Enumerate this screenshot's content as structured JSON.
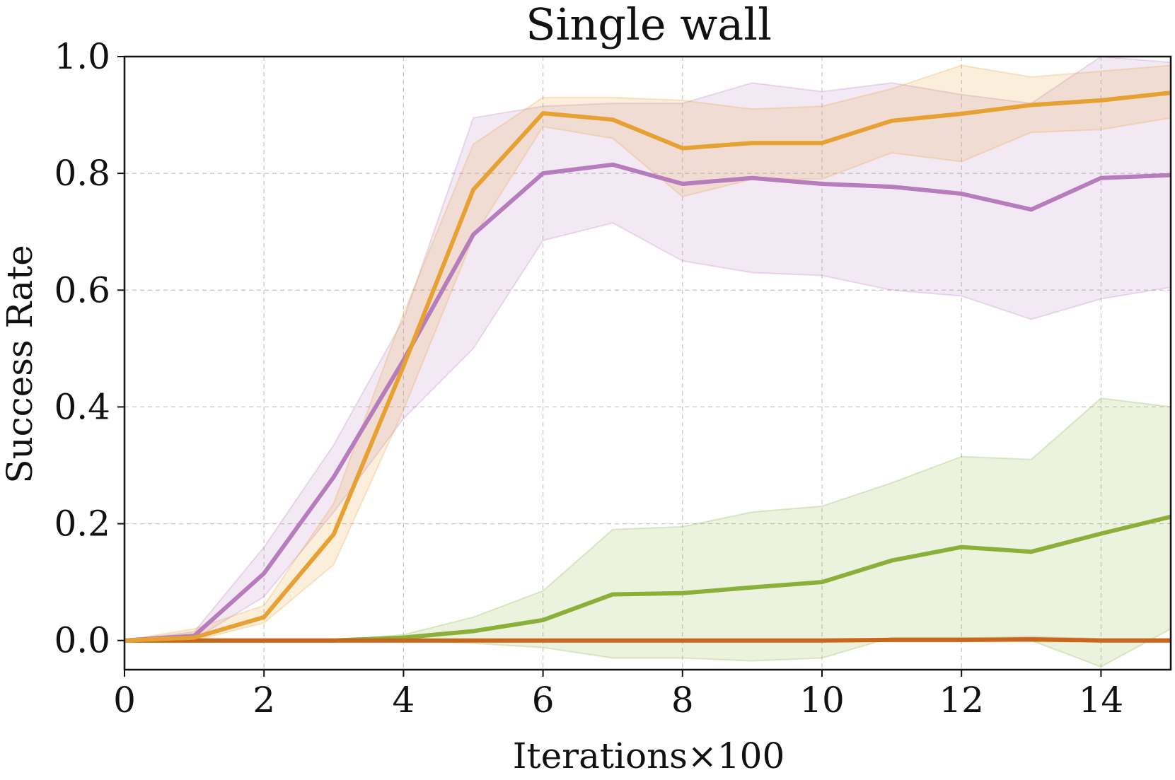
{
  "chart_data": {
    "type": "line",
    "title": "Single wall",
    "xlabel": "Iterations×100",
    "ylabel": "Success Rate",
    "xlim": [
      0,
      15
    ],
    "ylim": [
      -0.05,
      1.0
    ],
    "grid": true,
    "xticks": [
      0,
      2,
      4,
      6,
      8,
      10,
      12,
      14
    ],
    "xtick_labels": [
      "0",
      "2",
      "4",
      "6",
      "8",
      "10",
      "12",
      "14"
    ],
    "yticks": [
      0.0,
      0.2,
      0.4,
      0.6,
      0.8,
      1.0
    ],
    "ytick_labels": [
      "0.0",
      "0.2",
      "0.4",
      "0.6",
      "0.8",
      "1.0"
    ],
    "x": [
      0,
      1,
      2,
      3,
      4,
      5,
      6,
      7,
      8,
      9,
      10,
      11,
      12,
      13,
      14,
      15
    ],
    "series": [
      {
        "name": "green",
        "color": "#8bb03a",
        "values": [
          0.0,
          0.0,
          0.0,
          0.0,
          0.005,
          0.016,
          0.035,
          0.079,
          0.081,
          0.091,
          0.1,
          0.137,
          0.16,
          0.152,
          0.183,
          0.212
        ],
        "lower": [
          0.0,
          0.0,
          0.0,
          0.0,
          0.0,
          -0.005,
          -0.012,
          -0.03,
          -0.03,
          -0.035,
          -0.03,
          0.005,
          0.005,
          0.0,
          -0.045,
          0.02
        ],
        "upper": [
          0.0,
          0.0,
          0.0,
          0.0,
          0.01,
          0.04,
          0.085,
          0.19,
          0.195,
          0.22,
          0.23,
          0.27,
          0.315,
          0.31,
          0.415,
          0.4
        ]
      },
      {
        "name": "dark-orange",
        "color": "#c8661e",
        "values": [
          0.0,
          0.0,
          0.0,
          0.0,
          0.0,
          0.0,
          0.0,
          0.0,
          0.0,
          0.0,
          0.0,
          0.001,
          0.001,
          0.002,
          0.0,
          0.0
        ],
        "lower": [
          0.0,
          0.0,
          0.0,
          0.0,
          0.0,
          0.0,
          0.0,
          0.0,
          0.0,
          0.0,
          0.0,
          -0.002,
          -0.002,
          -0.002,
          -0.002,
          -0.002
        ],
        "upper": [
          0.0,
          0.0,
          0.0,
          0.0,
          0.0,
          0.0,
          0.0,
          0.0,
          0.0,
          0.0,
          0.0,
          0.004,
          0.004,
          0.006,
          0.003,
          0.003
        ]
      },
      {
        "name": "purple",
        "color": "#b77cbb",
        "values": [
          0.0,
          0.008,
          0.115,
          0.28,
          0.48,
          0.695,
          0.8,
          0.815,
          0.782,
          0.792,
          0.782,
          0.777,
          0.765,
          0.738,
          0.792,
          0.797
        ],
        "lower": [
          0.0,
          0.002,
          0.075,
          0.22,
          0.38,
          0.5,
          0.685,
          0.715,
          0.65,
          0.63,
          0.625,
          0.6,
          0.59,
          0.55,
          0.585,
          0.605
        ],
        "upper": [
          0.0,
          0.015,
          0.16,
          0.335,
          0.55,
          0.895,
          0.915,
          0.92,
          0.92,
          0.955,
          0.94,
          0.955,
          0.935,
          0.92,
          1.0,
          0.99
        ]
      },
      {
        "name": "orange",
        "color": "#e7a032",
        "values": [
          0.0,
          0.005,
          0.04,
          0.182,
          0.47,
          0.772,
          0.903,
          0.892,
          0.843,
          0.852,
          0.852,
          0.89,
          0.902,
          0.917,
          0.925,
          0.938
        ],
        "lower": [
          0.0,
          0.0,
          0.03,
          0.13,
          0.395,
          0.69,
          0.88,
          0.86,
          0.76,
          0.79,
          0.79,
          0.835,
          0.82,
          0.87,
          0.875,
          0.895
        ],
        "upper": [
          0.0,
          0.02,
          0.06,
          0.235,
          0.56,
          0.85,
          0.93,
          0.93,
          0.925,
          0.91,
          0.915,
          0.945,
          0.985,
          0.965,
          0.975,
          0.985
        ]
      }
    ]
  }
}
